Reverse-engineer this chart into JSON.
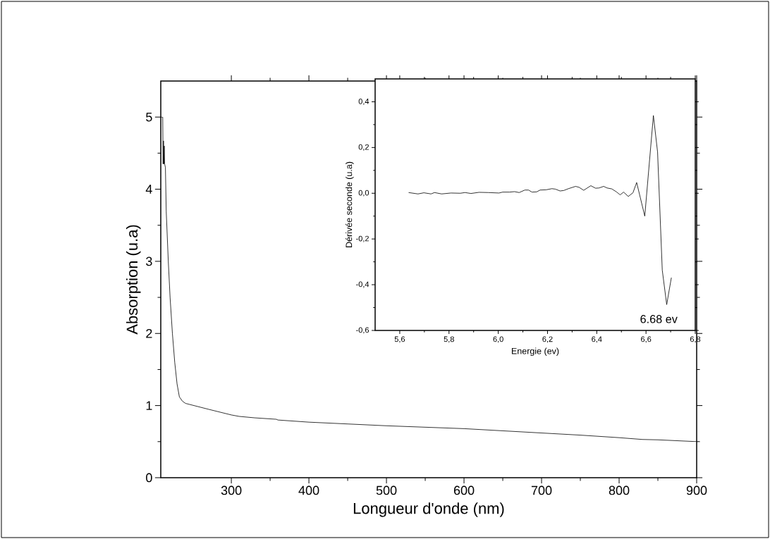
{
  "chart_data": [
    {
      "type": "line",
      "xlabel": "Longueur d'onde (nm)",
      "ylabel": "Absorption (u.a)",
      "color": "#000000",
      "xlim": [
        209,
        900
      ],
      "ylim": [
        0,
        5.5
      ],
      "xticks": [
        300,
        400,
        500,
        600,
        700,
        800,
        900
      ],
      "yticks": [
        0,
        1,
        2,
        3,
        4,
        5
      ],
      "x": [
        209,
        211.5,
        212,
        212.5,
        213,
        213.5,
        214,
        215,
        216,
        218.7,
        221,
        224,
        227,
        230,
        233,
        237,
        241,
        270,
        300,
        310,
        330,
        358,
        360,
        400,
        450,
        500,
        550,
        600,
        650,
        700,
        750,
        800,
        830,
        850,
        900
      ],
      "values": [
        5,
        5,
        4.35,
        4.67,
        4.35,
        4.6,
        4.35,
        4.3,
        3.7,
        3.0,
        2.5,
        2.0,
        1.6,
        1.3,
        1.12,
        1.06,
        1.03,
        0.95,
        0.87,
        0.85,
        0.83,
        0.81,
        0.8,
        0.77,
        0.745,
        0.72,
        0.7,
        0.68,
        0.65,
        0.62,
        0.59,
        0.555,
        0.53,
        0.525,
        0.5
      ]
    },
    {
      "type": "line",
      "xlabel": "Energie (ev)",
      "ylabel": "Dérivée seconde (u.a)",
      "color": "#000000",
      "xlim": [
        5.5,
        6.8
      ],
      "ylim": [
        -0.6,
        0.5
      ],
      "xticks": [
        {
          "value": 5.6,
          "label": "5,6"
        },
        {
          "value": 5.8,
          "label": "5,8"
        },
        {
          "value": 6.0,
          "label": "6,0"
        },
        {
          "value": 6.2,
          "label": "6,2"
        },
        {
          "value": 6.4,
          "label": "6,4"
        },
        {
          "value": 6.6,
          "label": "6,6"
        },
        {
          "value": 6.8,
          "label": "6,8"
        }
      ],
      "yticks": [
        {
          "value": -0.6,
          "label": "-0,6"
        },
        {
          "value": -0.4,
          "label": "-0,4"
        },
        {
          "value": -0.2,
          "label": "-0,2"
        },
        {
          "value": 0.0,
          "label": "0,0"
        },
        {
          "value": 0.2,
          "label": "0,2"
        },
        {
          "value": 0.4,
          "label": "0,4"
        }
      ],
      "annotations": [
        {
          "text": "6.68 ev",
          "x": 6.684,
          "y": -0.487
        }
      ],
      "x": [
        5.636,
        5.674,
        5.698,
        5.727,
        5.741,
        5.77,
        5.808,
        5.846,
        5.865,
        5.889,
        5.922,
        5.96,
        6.003,
        6.018,
        6.046,
        6.066,
        6.085,
        6.108,
        6.123,
        6.137,
        6.156,
        6.17,
        6.194,
        6.218,
        6.232,
        6.251,
        6.266,
        6.285,
        6.314,
        6.328,
        6.347,
        6.376,
        6.395,
        6.409,
        6.428,
        6.442,
        6.461,
        6.48,
        6.495,
        6.509,
        6.528,
        6.547,
        6.562,
        6.595,
        6.63,
        6.647,
        6.666,
        6.684,
        6.703
      ],
      "values": [
        0.003,
        -0.003,
        0.002,
        -0.003,
        0.003,
        -0.003,
        0.001,
        0.0,
        0.003,
        -0.001,
        0.004,
        0.003,
        0.001,
        0.005,
        0.005,
        0.007,
        0.003,
        0.014,
        0.014,
        0.005,
        0.006,
        0.014,
        0.015,
        0.02,
        0.018,
        0.01,
        0.012,
        0.02,
        0.03,
        0.026,
        0.013,
        0.033,
        0.022,
        0.023,
        0.03,
        0.023,
        0.019,
        0.006,
        -0.007,
        0.005,
        -0.014,
        0.002,
        0.047,
        -0.1,
        0.34,
        0.18,
        -0.336,
        -0.487,
        -0.369
      ]
    }
  ]
}
